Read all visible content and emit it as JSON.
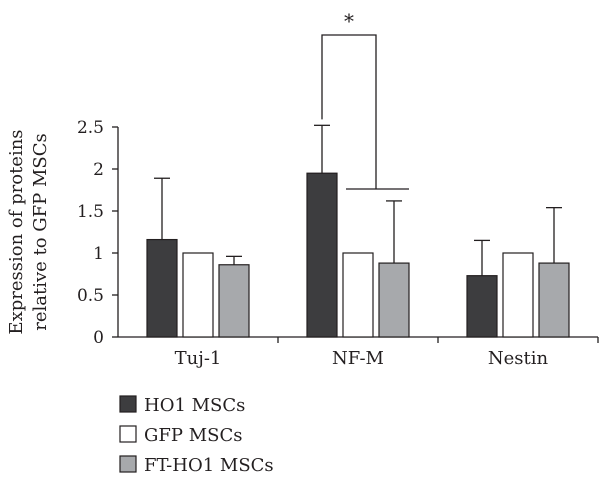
{
  "chart_data": {
    "type": "bar",
    "title": "",
    "ylabel": [
      "Expression of proteins",
      "relative to GFP MSCs"
    ],
    "xlabel": "",
    "categories": [
      "Tuj-1",
      "NF-M",
      "Nestin"
    ],
    "ylim": [
      0,
      2.5
    ],
    "yticks": [
      "0",
      "0.5",
      "1",
      "1.5",
      "2",
      "2.5"
    ],
    "series": [
      {
        "name": "HO1 MSCs",
        "color": "#3d3d3f",
        "values": [
          1.16,
          1.95,
          0.73
        ],
        "errors": [
          0.73,
          0.57,
          0.42
        ]
      },
      {
        "name": "GFP MSCs",
        "color": "#ffffff",
        "values": [
          1.0,
          1.0,
          1.0
        ],
        "errors": [
          0,
          0,
          0
        ]
      },
      {
        "name": "FT-HO1 MSCs",
        "color": "#a7a9ac",
        "values": [
          0.86,
          0.88,
          0.88
        ],
        "errors": [
          0.1,
          0.74,
          0.66
        ]
      }
    ],
    "significance": {
      "label": "*",
      "category": "NF-M"
    },
    "legend_position": "bottom-left"
  }
}
